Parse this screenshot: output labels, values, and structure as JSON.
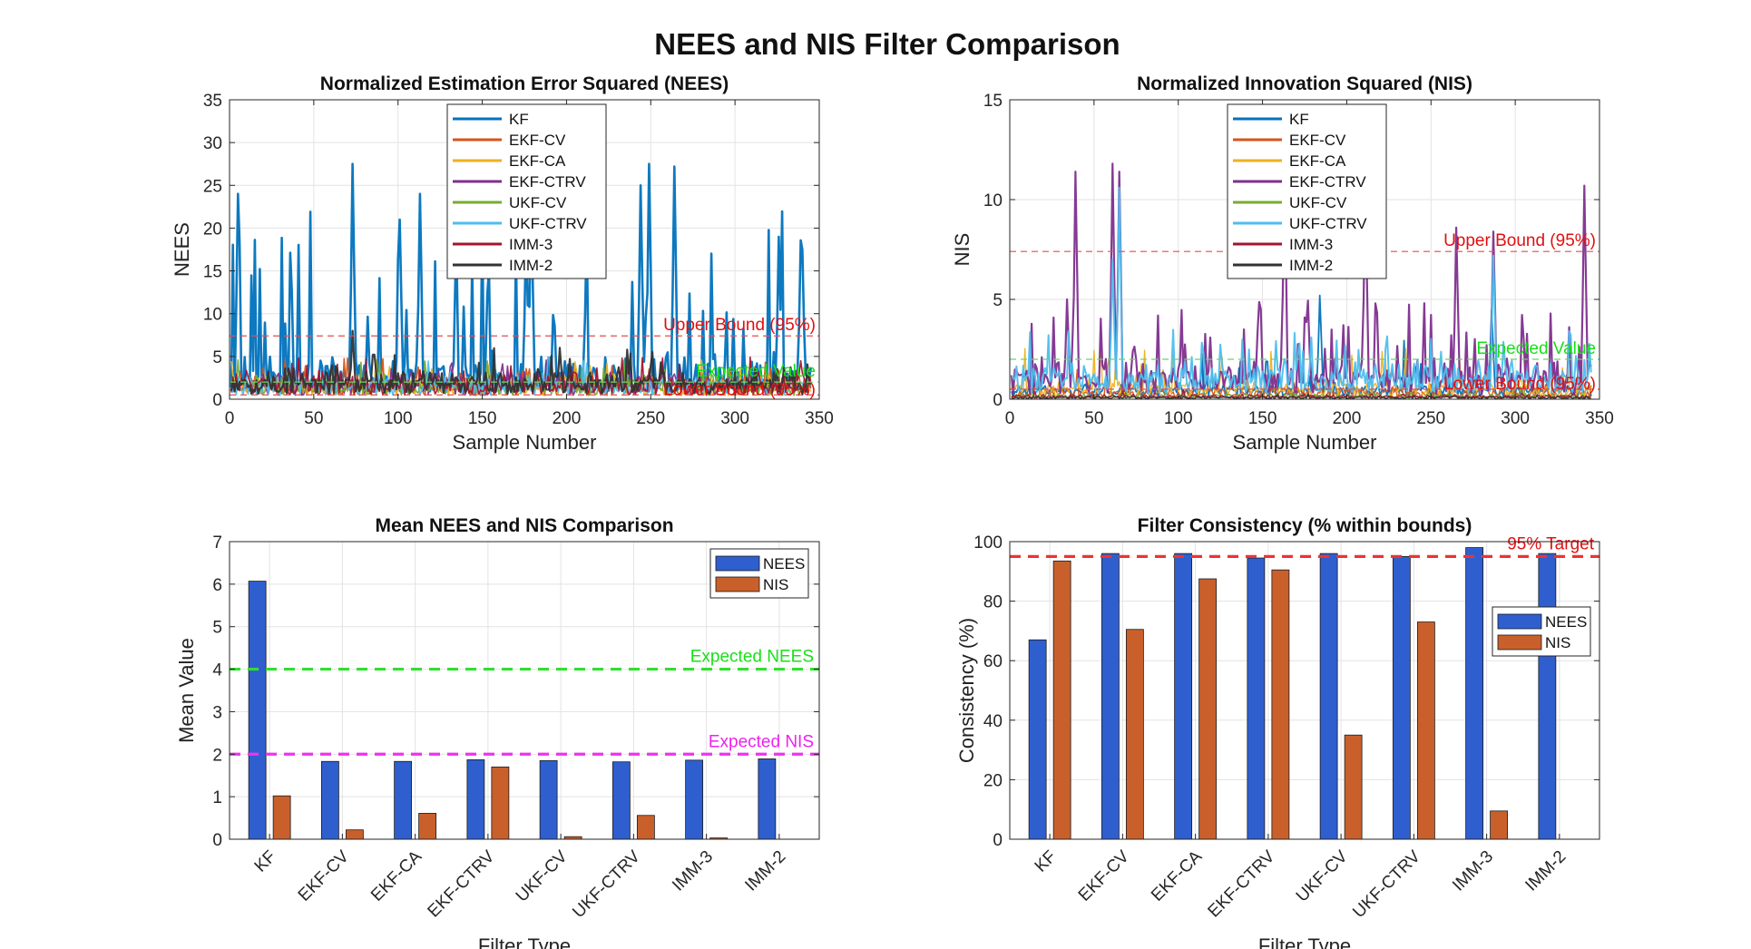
{
  "figure": {
    "title": "NEES and NIS Filter Comparison"
  },
  "chart_data": [
    {
      "id": "nees",
      "type": "line",
      "title": "Normalized Estimation Error Squared (NEES)",
      "xlabel": "Sample Number",
      "ylabel": "NEES",
      "xlim": [
        0,
        350
      ],
      "ylim": [
        0,
        35
      ],
      "xticks": [
        0,
        50,
        100,
        150,
        200,
        250,
        300,
        350
      ],
      "yticks": [
        0,
        5,
        10,
        15,
        20,
        25,
        30,
        35
      ],
      "grid": true,
      "legend": "top-center",
      "series": [
        {
          "name": "KF",
          "color": "#0072BD",
          "width": 2.6,
          "base": 3.0,
          "spread": 2.0,
          "spikeProb": 0.16,
          "spikeMin": 8,
          "spikeMax": 22,
          "seed": 11,
          "peaks": [
            [
              4,
              24
            ],
            [
              72,
              27.5
            ],
            [
              100,
              21
            ],
            [
              112,
              24
            ],
            [
              178,
              24
            ],
            [
              243,
              25
            ],
            [
              248,
              27.5
            ],
            [
              263,
              27.2
            ],
            [
              175,
              20
            ],
            [
              325,
              19
            ]
          ]
        },
        {
          "name": "EKF-CV",
          "color": "#D95319",
          "width": 1.6,
          "base": 1.4,
          "spread": 1.4,
          "spikeProb": 0.05,
          "spikeMin": 2,
          "spikeMax": 5,
          "seed": 23,
          "peaks": []
        },
        {
          "name": "EKF-CA",
          "color": "#EDB120",
          "width": 1.6,
          "base": 1.4,
          "spread": 1.4,
          "spikeProb": 0.05,
          "spikeMin": 2,
          "spikeMax": 5,
          "seed": 31,
          "peaks": []
        },
        {
          "name": "EKF-CTRV",
          "color": "#7E2F8E",
          "width": 1.6,
          "base": 1.5,
          "spread": 1.6,
          "spikeProb": 0.06,
          "spikeMin": 2,
          "spikeMax": 5,
          "seed": 37,
          "peaks": []
        },
        {
          "name": "UKF-CV",
          "color": "#77AC30",
          "width": 1.6,
          "base": 1.4,
          "spread": 1.4,
          "spikeProb": 0.05,
          "spikeMin": 2,
          "spikeMax": 5,
          "seed": 41,
          "peaks": []
        },
        {
          "name": "UKF-CTRV",
          "color": "#4DBEEE",
          "width": 1.6,
          "base": 1.5,
          "spread": 1.5,
          "spikeProb": 0.05,
          "spikeMin": 2,
          "spikeMax": 5,
          "seed": 43,
          "peaks": []
        },
        {
          "name": "IMM-3",
          "color": "#A2142F",
          "width": 1.6,
          "base": 1.6,
          "spread": 1.6,
          "spikeProb": 0.06,
          "spikeMin": 2,
          "spikeMax": 5,
          "seed": 47,
          "peaks": []
        },
        {
          "name": "IMM-2",
          "color": "#333333",
          "width": 2.2,
          "base": 1.8,
          "spread": 1.8,
          "spikeProb": 0.08,
          "spikeMin": 2.5,
          "spikeMax": 6,
          "seed": 53,
          "peaks": [
            [
              72,
              8
            ],
            [
              195,
              6
            ]
          ]
        }
      ],
      "reference_lines": [
        {
          "label": "Upper Bound (95%)",
          "y": 7.4,
          "color": "#E34F4F",
          "text_color": "#E01010"
        },
        {
          "label": "Expected Value",
          "y": 2.0,
          "color": "#6BD46B",
          "text_color": "#18E018"
        },
        {
          "label": "Lower Bound (95%)",
          "y": 0.5,
          "color": "#E34F4F",
          "text_color": "#E01010"
        }
      ]
    },
    {
      "id": "nis",
      "type": "line",
      "title": "Normalized Innovation Squared (NIS)",
      "xlabel": "Sample Number",
      "ylabel": "NIS",
      "xlim": [
        0,
        350
      ],
      "ylim": [
        0,
        15
      ],
      "xticks": [
        0,
        50,
        100,
        150,
        200,
        250,
        300,
        350
      ],
      "yticks": [
        0,
        5,
        10,
        15
      ],
      "grid": true,
      "legend": "top-center",
      "series": [
        {
          "name": "KF",
          "color": "#0072BD",
          "width": 1.8,
          "base": 0.3,
          "spread": 0.5,
          "spikeProb": 0.05,
          "spikeMin": 1,
          "spikeMax": 3,
          "seed": 61,
          "peaks": [
            [
              183,
              5.2
            ],
            [
              285,
              4.5
            ]
          ]
        },
        {
          "name": "EKF-CV",
          "color": "#D95319",
          "width": 1.4,
          "base": 0.2,
          "spread": 0.4,
          "spikeProb": 0.04,
          "spikeMin": 0.5,
          "spikeMax": 1.5,
          "seed": 67,
          "peaks": []
        },
        {
          "name": "EKF-CA",
          "color": "#EDB120",
          "width": 1.4,
          "base": 0.4,
          "spread": 0.6,
          "spikeProb": 0.06,
          "spikeMin": 1,
          "spikeMax": 3,
          "seed": 71,
          "peaks": []
        },
        {
          "name": "EKF-CTRV",
          "color": "#7E2F8E",
          "width": 2.2,
          "base": 0.8,
          "spread": 1.2,
          "spikeProb": 0.14,
          "spikeMin": 2,
          "spikeMax": 5,
          "seed": 73,
          "peaks": [
            [
              38,
              11.4
            ],
            [
              60,
              11.8
            ],
            [
              64,
              11.4
            ],
            [
              162,
              11.7
            ],
            [
              210,
              11.0
            ],
            [
              264,
              8.6
            ],
            [
              286,
              8.4
            ],
            [
              340,
              10.7
            ],
            [
              33,
              5
            ]
          ]
        },
        {
          "name": "UKF-CV",
          "color": "#77AC30",
          "width": 1.4,
          "base": 0.1,
          "spread": 0.2,
          "spikeProb": 0.02,
          "spikeMin": 0.3,
          "spikeMax": 0.8,
          "seed": 79,
          "peaks": []
        },
        {
          "name": "UKF-CTRV",
          "color": "#4DBEEE",
          "width": 2.0,
          "base": 0.9,
          "spread": 1.0,
          "spikeProb": 0.1,
          "spikeMin": 1.5,
          "spikeMax": 3.5,
          "seed": 83,
          "peaks": [
            [
              64,
              10.6
            ],
            [
              60,
              7
            ],
            [
              286,
              7.2
            ]
          ]
        },
        {
          "name": "IMM-3",
          "color": "#A2142F",
          "width": 1.4,
          "base": 0.1,
          "spread": 0.15,
          "spikeProb": 0.02,
          "spikeMin": 0.2,
          "spikeMax": 0.5,
          "seed": 89,
          "peaks": []
        },
        {
          "name": "IMM-2",
          "color": "#333333",
          "width": 1.4,
          "base": 0.05,
          "spread": 0.1,
          "spikeProb": 0.01,
          "spikeMin": 0.1,
          "spikeMax": 0.3,
          "seed": 97,
          "peaks": []
        }
      ],
      "reference_lines": [
        {
          "label": "Upper Bound (95%)",
          "y": 7.4,
          "color": "#E34F4F",
          "text_color": "#E01010"
        },
        {
          "label": "Expected Value",
          "y": 2.0,
          "color": "#6BD46B",
          "text_color": "#18E018"
        },
        {
          "label": "Lower Bound (95%)",
          "y": 0.5,
          "color": "#E34F4F",
          "text_color": "#E01010"
        }
      ]
    },
    {
      "id": "mean",
      "type": "bar",
      "title": "Mean NEES and NIS Comparison",
      "xlabel": "Filter Type",
      "ylabel": "Mean Value",
      "ylim": [
        0,
        7
      ],
      "yticks": [
        0,
        1,
        2,
        3,
        4,
        5,
        6,
        7
      ],
      "grid": true,
      "legend": "top-right",
      "categories": [
        "KF",
        "EKF-CV",
        "EKF-CA",
        "EKF-CTRV",
        "UKF-CV",
        "UKF-CTRV",
        "IMM-3",
        "IMM-2"
      ],
      "series": [
        {
          "name": "NEES",
          "color": "#2F5FCF",
          "values": [
            6.07,
            1.83,
            1.83,
            1.87,
            1.85,
            1.82,
            1.86,
            1.89
          ]
        },
        {
          "name": "NIS",
          "color": "#C9602C",
          "values": [
            1.02,
            0.22,
            0.61,
            1.7,
            0.06,
            0.56,
            0.03,
            0.0
          ]
        }
      ],
      "reference_lines": [
        {
          "label": "Expected NEES",
          "y": 4,
          "color": "#33DD33",
          "text_color": "#18E018"
        },
        {
          "label": "Expected NIS",
          "y": 2,
          "color": "#EE33EE",
          "text_color": "#EE22EE"
        }
      ]
    },
    {
      "id": "consistency",
      "type": "bar",
      "title": "Filter Consistency (% within bounds)",
      "xlabel": "Filter Type",
      "ylabel": "Consistency (%)",
      "ylim": [
        0,
        100
      ],
      "yticks": [
        0,
        20,
        40,
        60,
        80,
        100
      ],
      "grid": true,
      "legend": "right",
      "categories": [
        "KF",
        "EKF-CV",
        "EKF-CA",
        "EKF-CTRV",
        "UKF-CV",
        "UKF-CTRV",
        "IMM-3",
        "IMM-2"
      ],
      "series": [
        {
          "name": "NEES",
          "color": "#2F5FCF",
          "values": [
            67,
            96,
            96,
            94.5,
            96,
            95,
            98,
            96
          ]
        },
        {
          "name": "NIS",
          "color": "#C9602C",
          "values": [
            93.5,
            70.5,
            87.5,
            90.5,
            35,
            73,
            9.5,
            0
          ]
        }
      ],
      "reference_lines": [
        {
          "label": "95% Target",
          "y": 95,
          "color": "#EE3333",
          "text_color": "#E01010"
        }
      ]
    }
  ]
}
